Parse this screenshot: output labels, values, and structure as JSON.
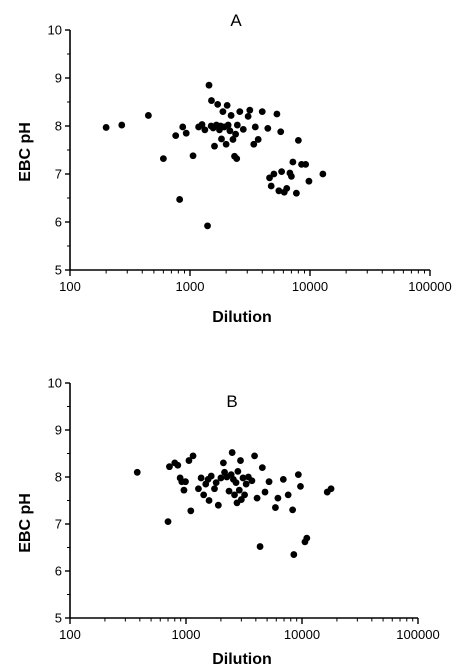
{
  "chart_data": [
    {
      "type": "scatter",
      "title": "A",
      "xlabel": "Dilution",
      "ylabel": "EBC pH",
      "xscale": "log",
      "xlim": [
        100,
        100000
      ],
      "ylim": [
        5,
        10
      ],
      "xticks": [
        "100",
        "1000",
        "10000",
        "100000"
      ],
      "yticks": [
        "5",
        "6",
        "7",
        "8",
        "9",
        "10"
      ],
      "grid": false,
      "points": [
        [
          200,
          7.97
        ],
        [
          270,
          8.02
        ],
        [
          450,
          8.22
        ],
        [
          600,
          7.32
        ],
        [
          760,
          7.8
        ],
        [
          820,
          6.47
        ],
        [
          870,
          7.98
        ],
        [
          930,
          7.85
        ],
        [
          1060,
          7.38
        ],
        [
          1180,
          7.98
        ],
        [
          1260,
          8.03
        ],
        [
          1330,
          7.92
        ],
        [
          1400,
          5.92
        ],
        [
          1440,
          8.85
        ],
        [
          1500,
          8.0
        ],
        [
          1510,
          8.53
        ],
        [
          1560,
          7.96
        ],
        [
          1600,
          7.58
        ],
        [
          1660,
          8.02
        ],
        [
          1700,
          8.45
        ],
        [
          1760,
          7.92
        ],
        [
          1800,
          8.0
        ],
        [
          1830,
          7.73
        ],
        [
          1880,
          8.3
        ],
        [
          1930,
          7.98
        ],
        [
          2000,
          7.62
        ],
        [
          2040,
          8.43
        ],
        [
          2080,
          8.02
        ],
        [
          2150,
          7.9
        ],
        [
          2200,
          8.22
        ],
        [
          2280,
          7.72
        ],
        [
          2350,
          7.37
        ],
        [
          2400,
          7.83
        ],
        [
          2450,
          7.32
        ],
        [
          2480,
          8.02
        ],
        [
          2600,
          8.3
        ],
        [
          2780,
          7.93
        ],
        [
          3050,
          8.2
        ],
        [
          3150,
          8.33
        ],
        [
          3400,
          7.62
        ],
        [
          3500,
          7.98
        ],
        [
          3700,
          7.72
        ],
        [
          4000,
          8.3
        ],
        [
          4450,
          7.95
        ],
        [
          4600,
          6.92
        ],
        [
          4750,
          6.75
        ],
        [
          5000,
          7.0
        ],
        [
          5300,
          8.25
        ],
        [
          5500,
          6.65
        ],
        [
          5700,
          7.88
        ],
        [
          5800,
          7.05
        ],
        [
          6100,
          6.62
        ],
        [
          6400,
          6.7
        ],
        [
          6800,
          7.02
        ],
        [
          7000,
          6.95
        ],
        [
          7200,
          7.25
        ],
        [
          7700,
          6.6
        ],
        [
          8000,
          7.7
        ],
        [
          8500,
          7.2
        ],
        [
          9200,
          7.2
        ],
        [
          9800,
          6.85
        ],
        [
          12800,
          7.0
        ]
      ]
    },
    {
      "type": "scatter",
      "title": "B",
      "xlabel": "Dilution",
      "ylabel": "EBC pH",
      "xscale": "log",
      "xlim": [
        100,
        100000
      ],
      "ylim": [
        5,
        10
      ],
      "xticks": [
        "100",
        "1000",
        "10000",
        "100000"
      ],
      "yticks": [
        "5",
        "6",
        "7",
        "8",
        "9",
        "10"
      ],
      "grid": false,
      "points": [
        [
          380,
          8.1
        ],
        [
          700,
          7.05
        ],
        [
          720,
          8.22
        ],
        [
          800,
          8.3
        ],
        [
          850,
          8.25
        ],
        [
          890,
          7.98
        ],
        [
          920,
          7.9
        ],
        [
          960,
          7.72
        ],
        [
          990,
          7.9
        ],
        [
          1060,
          8.35
        ],
        [
          1100,
          7.28
        ],
        [
          1150,
          8.45
        ],
        [
          1280,
          7.75
        ],
        [
          1350,
          7.98
        ],
        [
          1420,
          7.62
        ],
        [
          1480,
          7.85
        ],
        [
          1550,
          7.95
        ],
        [
          1580,
          7.5
        ],
        [
          1650,
          8.02
        ],
        [
          1760,
          7.75
        ],
        [
          1820,
          7.88
        ],
        [
          1900,
          7.4
        ],
        [
          2000,
          7.98
        ],
        [
          2100,
          8.3
        ],
        [
          2150,
          8.1
        ],
        [
          2250,
          8.0
        ],
        [
          2350,
          7.7
        ],
        [
          2450,
          8.05
        ],
        [
          2500,
          8.52
        ],
        [
          2560,
          7.95
        ],
        [
          2620,
          7.62
        ],
        [
          2700,
          7.88
        ],
        [
          2750,
          7.45
        ],
        [
          2800,
          8.12
        ],
        [
          2880,
          7.72
        ],
        [
          2950,
          8.35
        ],
        [
          3000,
          7.52
        ],
        [
          3100,
          7.98
        ],
        [
          3200,
          7.62
        ],
        [
          3300,
          7.85
        ],
        [
          3450,
          8.0
        ],
        [
          3700,
          7.92
        ],
        [
          3900,
          8.45
        ],
        [
          4100,
          7.55
        ],
        [
          4350,
          6.52
        ],
        [
          4550,
          8.2
        ],
        [
          4800,
          7.68
        ],
        [
          5200,
          7.9
        ],
        [
          5900,
          7.35
        ],
        [
          6200,
          7.55
        ],
        [
          6900,
          7.95
        ],
        [
          7600,
          7.62
        ],
        [
          8300,
          7.3
        ],
        [
          8500,
          6.35
        ],
        [
          9300,
          8.05
        ],
        [
          9700,
          7.8
        ],
        [
          10600,
          6.62
        ],
        [
          11000,
          6.7
        ],
        [
          16500,
          7.68
        ],
        [
          17800,
          7.75
        ]
      ]
    }
  ]
}
